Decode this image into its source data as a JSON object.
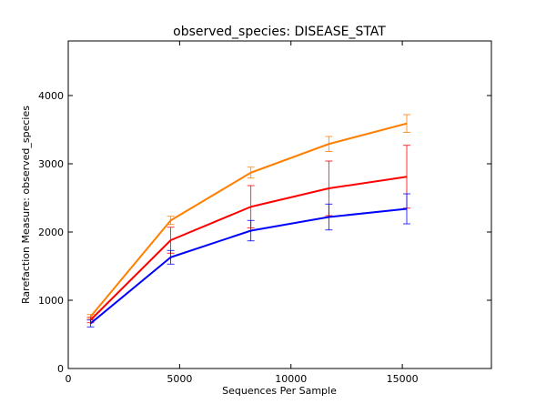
{
  "chart_data": {
    "type": "line",
    "title": "observed_species: DISEASE_STAT",
    "xlabel": "Sequences Per Sample",
    "ylabel": "Rarefaction Measure: observed_species",
    "xlim": [
      0,
      19000
    ],
    "ylim": [
      0,
      4800
    ],
    "x_ticks": [
      0,
      5000,
      10000,
      15000
    ],
    "y_ticks": [
      0,
      1000,
      2000,
      3000,
      4000
    ],
    "x_tick_labels": [
      "0",
      "5000",
      "10000",
      "15000"
    ],
    "y_tick_labels": [
      "0",
      "1000",
      "2000",
      "3000",
      "4000"
    ],
    "grid": false,
    "x": [
      1000,
      4600,
      8200,
      11700,
      15200
    ],
    "series": [
      {
        "color": "#ff7f00",
        "values": [
          760,
          2170,
          2870,
          3290,
          3590
        ],
        "errors": [
          30,
          60,
          80,
          110,
          130
        ]
      },
      {
        "color": "#ff0000",
        "values": [
          710,
          1880,
          2370,
          2640,
          2810
        ],
        "errors": [
          40,
          190,
          310,
          400,
          460
        ]
      },
      {
        "color": "#0000ff",
        "values": [
          660,
          1630,
          2020,
          2220,
          2340
        ],
        "errors": [
          50,
          100,
          150,
          190,
          220
        ]
      }
    ]
  }
}
